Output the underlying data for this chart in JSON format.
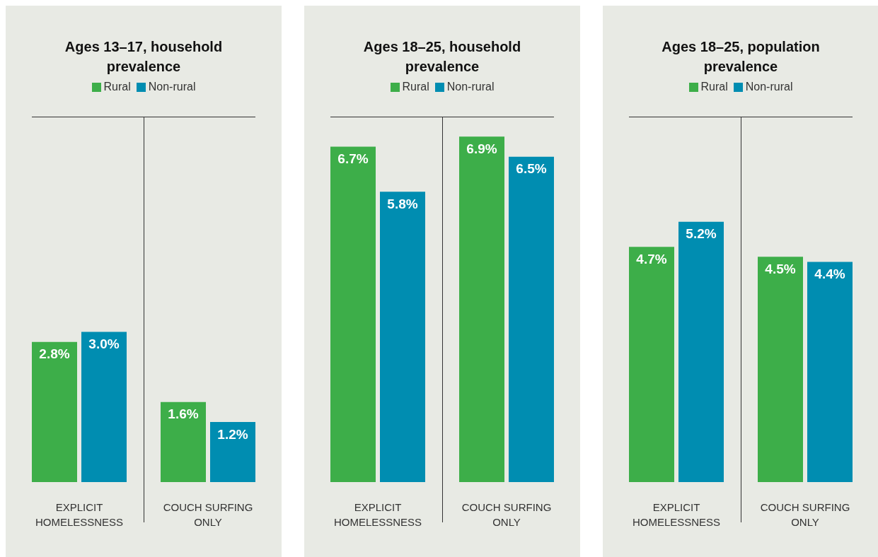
{
  "chart_data": [
    {
      "type": "bar",
      "title": "Ages 13–17, household prevalence",
      "categories": [
        "EXPLICIT HOMELESSNESS",
        "COUCH SURFING ONLY"
      ],
      "ylim": [
        0,
        7.3
      ],
      "legend": "top",
      "series": [
        {
          "name": "Rural",
          "color": "#3dae49",
          "values": [
            2.8,
            1.6
          ],
          "value_labels": [
            "2.8%",
            "1.6%"
          ]
        },
        {
          "name": "Non-rural",
          "color": "#008db1",
          "values": [
            3.0,
            1.2
          ],
          "value_labels": [
            "3.0%",
            "1.2%"
          ]
        }
      ]
    },
    {
      "type": "bar",
      "title": "Ages 18–25, household prevalence",
      "categories": [
        "EXPLICIT HOMELESSNESS",
        "COUCH SURFING ONLY"
      ],
      "ylim": [
        0,
        7.3
      ],
      "legend": "top",
      "series": [
        {
          "name": "Rural",
          "color": "#3dae49",
          "values": [
            6.7,
            6.9
          ],
          "value_labels": [
            "6.7%",
            "6.9%"
          ]
        },
        {
          "name": "Non-rural",
          "color": "#008db1",
          "values": [
            5.8,
            6.5
          ],
          "value_labels": [
            "5.8%",
            "6.5%"
          ]
        }
      ]
    },
    {
      "type": "bar",
      "title": "Ages 18–25, population prevalence",
      "categories": [
        "EXPLICIT HOMELESSNESS",
        "COUCH SURFING ONLY"
      ],
      "ylim": [
        0,
        7.3
      ],
      "legend": "top",
      "series": [
        {
          "name": "Rural",
          "color": "#3dae49",
          "values": [
            4.7,
            4.5
          ],
          "value_labels": [
            "4.7%",
            "4.5%"
          ]
        },
        {
          "name": "Non-rural",
          "color": "#008db1",
          "values": [
            5.2,
            4.4
          ],
          "value_labels": [
            "5.2%",
            "4.4%"
          ]
        }
      ]
    }
  ]
}
